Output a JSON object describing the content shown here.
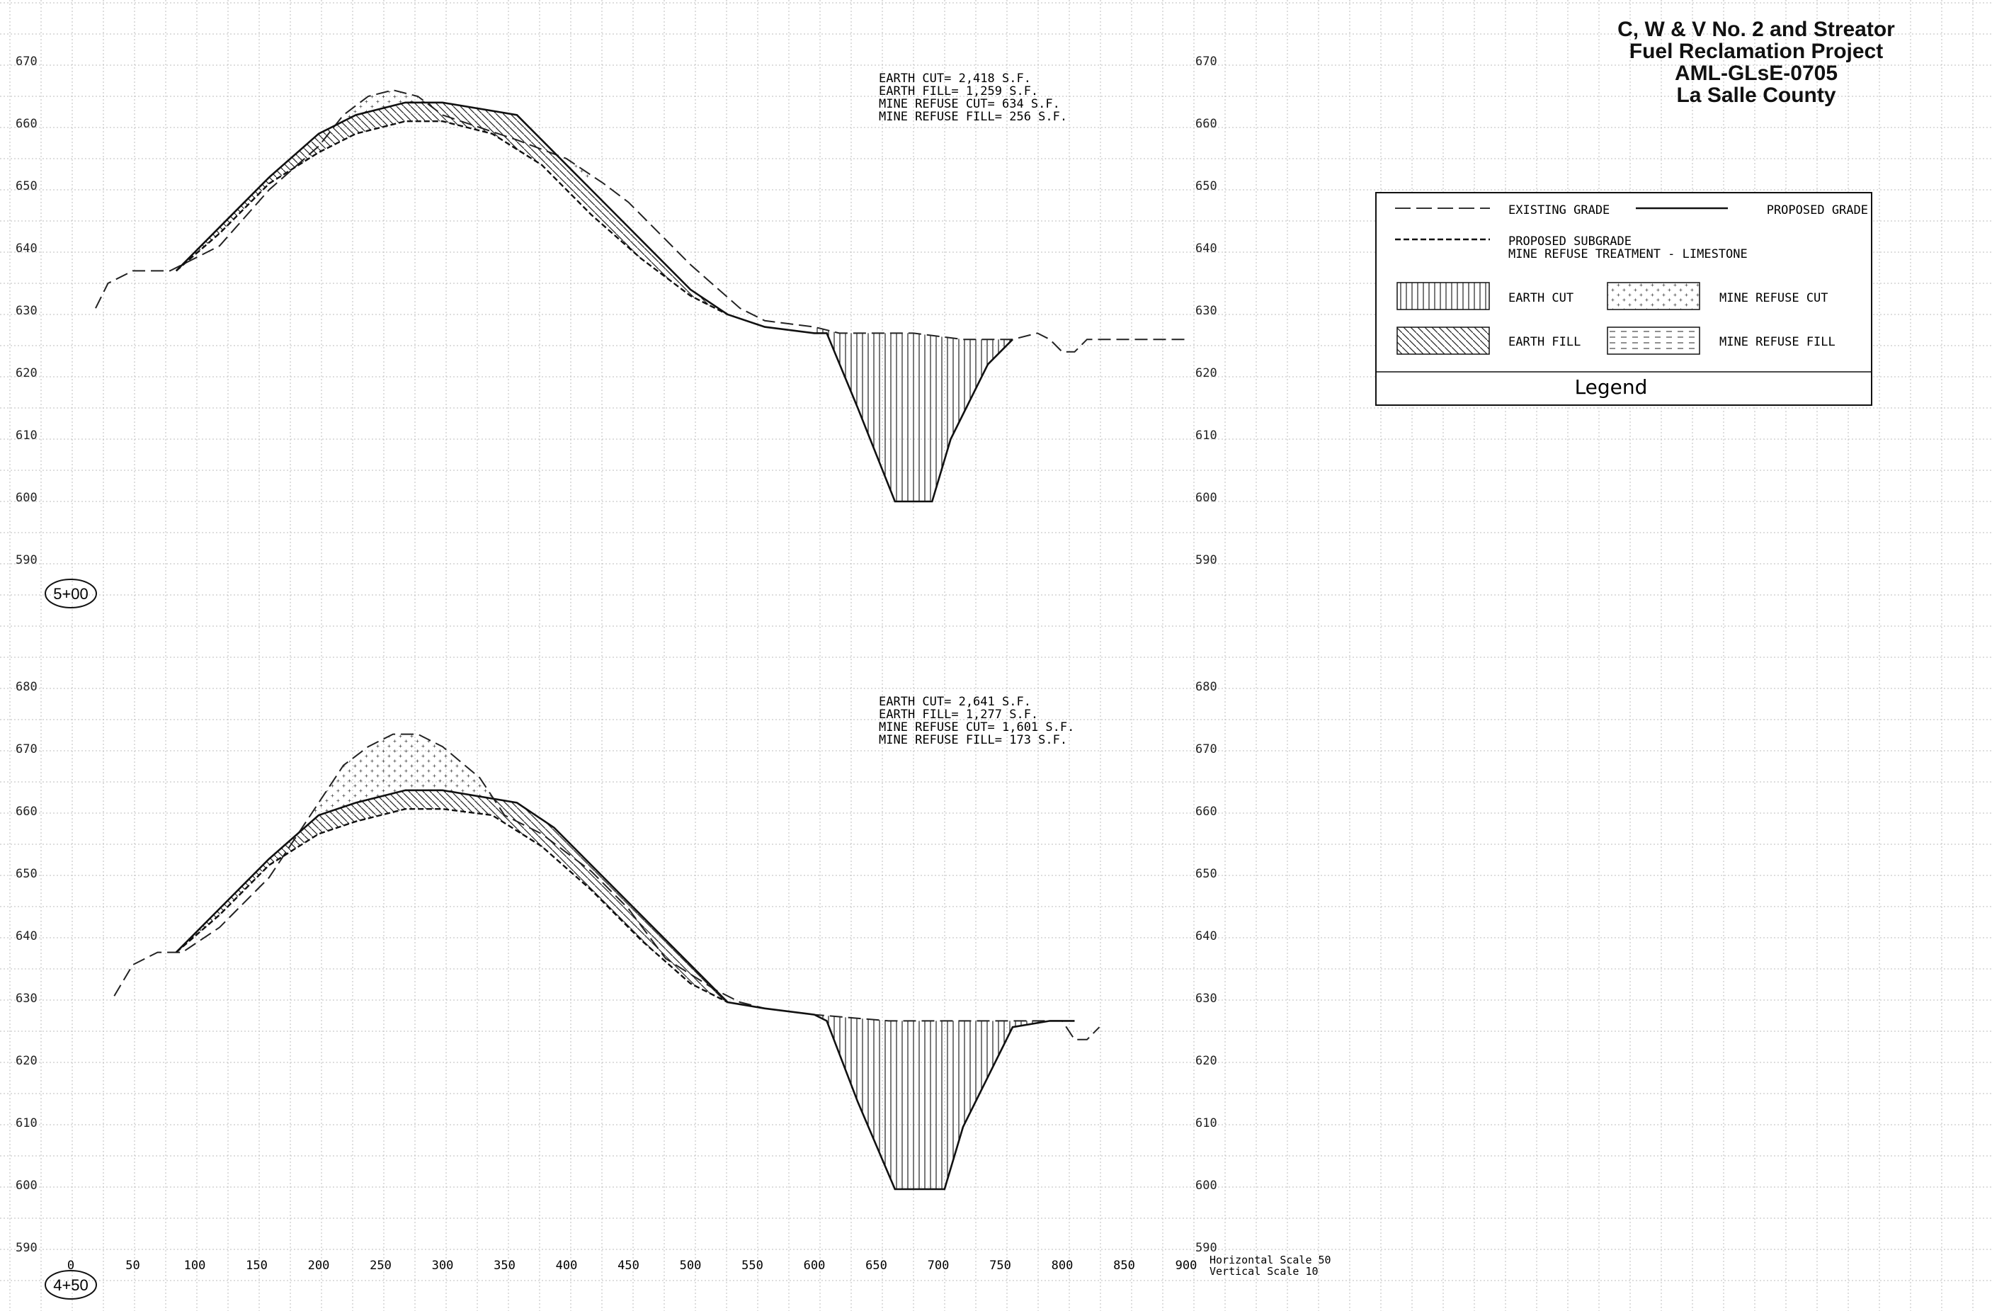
{
  "title_block": {
    "line1": "C, W & V No. 2 and Streator",
    "line2": "Fuel Reclamation Project",
    "line3": "AML-GLsE-0705",
    "line4": "La Salle County"
  },
  "legend": {
    "title": "Legend",
    "existing_grade": "EXISTING GRADE",
    "proposed_grade": "PROPOSED GRADE",
    "proposed_subgrade": "PROPOSED SUBGRADE",
    "treatment": "MINE REFUSE TREATMENT - LIMESTONE",
    "earth_cut": "EARTH CUT",
    "mine_refuse_cut": "MINE REFUSE CUT",
    "earth_fill": "EARTH FILL",
    "mine_refuse_fill": "MINE REFUSE FILL"
  },
  "x_axis": {
    "ticks": [
      "0",
      "50",
      "100",
      "150",
      "200",
      "250",
      "300",
      "350",
      "400",
      "450",
      "500",
      "550",
      "600",
      "650",
      "700",
      "750",
      "800",
      "850",
      "900"
    ],
    "horizontal_scale": "Horizontal Scale 50",
    "vertical_scale": "Vertical Scale 10"
  },
  "sections": [
    {
      "station": "5+00",
      "quantities": [
        "EARTH CUT= 2,418 S.F.",
        "EARTH FILL= 1,259 S.F.",
        "MINE REFUSE CUT= 634 S.F.",
        "MINE REFUSE FILL= 256 S.F."
      ],
      "y_ticks": [
        "670",
        "660",
        "650",
        "640",
        "630",
        "620",
        "610",
        "600",
        "590"
      ]
    },
    {
      "station": "4+50",
      "quantities": [
        "EARTH CUT= 2,641 S.F.",
        "EARTH FILL= 1,277 S.F.",
        "MINE REFUSE CUT= 1,601 S.F.",
        "MINE REFUSE FILL= 173 S.F."
      ],
      "y_ticks": [
        "680",
        "670",
        "660",
        "650",
        "640",
        "630",
        "620",
        "610",
        "600",
        "590"
      ]
    }
  ],
  "chart_data": [
    {
      "type": "line",
      "title": "5+00",
      "xlim": [
        0,
        900
      ],
      "ylim": [
        590,
        675
      ],
      "series": [
        {
          "name": "EXISTING GRADE",
          "x": [
            20,
            30,
            50,
            80,
            120,
            160,
            200,
            220,
            240,
            260,
            280,
            300,
            330,
            360,
            400,
            430,
            450,
            500,
            540,
            560,
            600,
            620,
            650,
            680,
            720,
            760,
            780,
            790,
            800,
            810,
            820,
            860,
            900
          ],
          "y": [
            631,
            635,
            637,
            637,
            641,
            650,
            657,
            662,
            665,
            666,
            665,
            662,
            660,
            658,
            655,
            651,
            648,
            638,
            631,
            629,
            628,
            627,
            627,
            627,
            626,
            626,
            627,
            626,
            624,
            624,
            626,
            626,
            626
          ]
        },
        {
          "name": "PROPOSED GRADE",
          "x": [
            85,
            120,
            160,
            200,
            230,
            270,
            300,
            360,
            380,
            420,
            460,
            500,
            530,
            560,
            600,
            610,
            635,
            665,
            695,
            710,
            740,
            760
          ],
          "y": [
            637,
            644,
            652,
            659,
            662,
            664,
            664,
            662,
            658,
            650,
            642,
            634,
            630,
            628,
            627,
            627,
            615,
            600,
            600,
            610,
            622,
            626
          ]
        },
        {
          "name": "PROPOSED SUBGRADE",
          "x": [
            85,
            120,
            160,
            200,
            230,
            270,
            300,
            340,
            380,
            420,
            460,
            500,
            530
          ],
          "y": [
            637,
            643,
            651,
            656,
            659,
            661,
            661,
            659,
            654,
            646,
            639,
            633,
            630
          ]
        }
      ]
    },
    {
      "type": "line",
      "title": "4+50",
      "xlim": [
        0,
        900
      ],
      "ylim": [
        590,
        685
      ],
      "series": [
        {
          "name": "EXISTING GRADE",
          "x": [
            35,
            50,
            70,
            90,
            120,
            160,
            180,
            200,
            220,
            240,
            260,
            280,
            300,
            330,
            350,
            380,
            420,
            450,
            480,
            520,
            540,
            560,
            600,
            660,
            700,
            750,
            790,
            800,
            810,
            820,
            830
          ],
          "y": [
            631,
            636,
            638,
            638,
            642,
            650,
            656,
            662,
            668,
            671,
            673,
            673,
            671,
            666,
            660,
            657,
            651,
            645,
            637,
            632,
            630,
            629,
            628,
            627,
            627,
            627,
            627,
            627,
            624,
            624,
            626
          ]
        },
        {
          "name": "PROPOSED GRADE",
          "x": [
            85,
            120,
            160,
            200,
            230,
            270,
            300,
            360,
            390,
            420,
            460,
            500,
            530,
            560,
            600,
            610,
            635,
            665,
            705,
            720,
            760,
            790,
            810
          ],
          "y": [
            638,
            645,
            653,
            660,
            662,
            664,
            664,
            662,
            658,
            652,
            644,
            636,
            630,
            629,
            628,
            627,
            614,
            600,
            600,
            610,
            626,
            627,
            627
          ]
        },
        {
          "name": "PROPOSED SUBGRADE",
          "x": [
            85,
            120,
            160,
            200,
            230,
            270,
            300,
            340,
            380,
            420,
            460,
            500,
            530
          ],
          "y": [
            638,
            644,
            652,
            657,
            659,
            661,
            661,
            660,
            655,
            648,
            640,
            633,
            630
          ]
        }
      ]
    }
  ]
}
